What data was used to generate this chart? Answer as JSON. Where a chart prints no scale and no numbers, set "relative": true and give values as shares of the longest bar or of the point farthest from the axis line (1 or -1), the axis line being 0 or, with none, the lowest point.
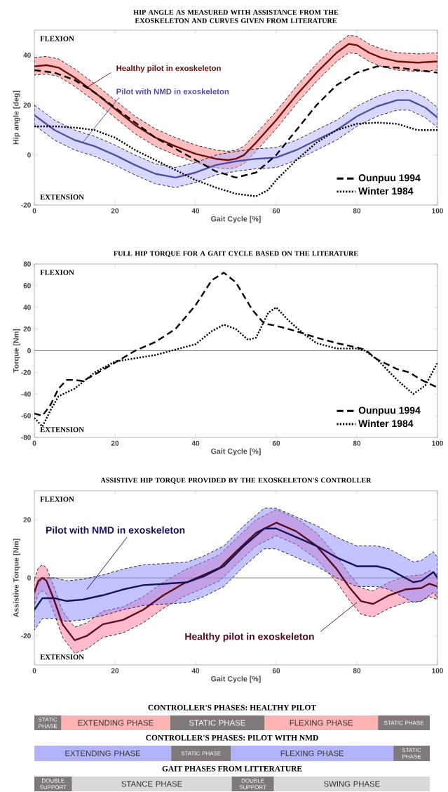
{
  "chart_data": [
    {
      "type": "line",
      "title": "HIP ANGLE AS MEASURED WITH ASSISTANCE FROM THE EXOSKELETON AND CURVES GIVEN FROM LITERATURE",
      "xlabel": "Gait Cycle [%]",
      "ylabel": "Hip angle [deg]",
      "annotations": [
        "FLEXION",
        "EXTENSION"
      ],
      "xlim": [
        0,
        100
      ],
      "ylim": [
        -20,
        50
      ],
      "xticks": [
        0,
        20,
        40,
        60,
        80,
        100
      ],
      "yticks": [
        -20,
        0,
        20,
        40
      ],
      "legend": "bottom right",
      "series": [
        {
          "name": "Healthy pilot in exoskeleton",
          "color": "#6b0f0f",
          "x": [
            0,
            3,
            6,
            10,
            15,
            20,
            25,
            30,
            35,
            40,
            45,
            48,
            50,
            52,
            55,
            60,
            65,
            70,
            75,
            78,
            80,
            83,
            86,
            90,
            95,
            100
          ],
          "values": [
            35.5,
            36,
            35,
            31,
            25,
            18.5,
            12,
            7,
            3.5,
            0.5,
            -1.5,
            -2,
            -1.5,
            0,
            5,
            14,
            24,
            33,
            41,
            44.5,
            44,
            41,
            39,
            37.5,
            37,
            37.5
          ],
          "upper": [
            39,
            39.5,
            38.5,
            34.5,
            28.5,
            22,
            15.5,
            10.5,
            7,
            4,
            2,
            1.5,
            2,
            3.5,
            8.5,
            17.5,
            27.5,
            36.5,
            44.5,
            48,
            47.5,
            44.5,
            42.5,
            41,
            40.5,
            41
          ],
          "lower": [
            32,
            32.5,
            31.5,
            27.5,
            21.5,
            15,
            8.5,
            3.5,
            0,
            -3,
            -5,
            -5.5,
            -5,
            -3.5,
            1.5,
            10.5,
            20.5,
            29.5,
            37.5,
            41,
            40.5,
            37.5,
            35.5,
            34,
            33.5,
            34
          ]
        },
        {
          "name": "Pilot with NMD in exoskeleton",
          "color": "#5050a0",
          "x": [
            0,
            5,
            10,
            15,
            20,
            25,
            30,
            35,
            40,
            45,
            50,
            55,
            60,
            65,
            70,
            75,
            80,
            85,
            90,
            93,
            97,
            100
          ],
          "values": [
            16,
            10,
            6,
            3.5,
            0,
            -4,
            -7.5,
            -9,
            -7,
            -4,
            -2.5,
            -1.5,
            -1,
            2,
            6,
            10,
            15.5,
            19.5,
            22,
            22,
            19,
            15
          ],
          "upper": [
            20,
            14,
            10,
            7.5,
            4,
            0,
            -3.5,
            -5,
            -3,
            0,
            1.5,
            2.5,
            3,
            6,
            10,
            14,
            19.5,
            23.5,
            26,
            26,
            23,
            19
          ],
          "lower": [
            12,
            6,
            2,
            -0.5,
            -4,
            -8,
            -11.5,
            -13,
            -11,
            -8,
            -6.5,
            -5.5,
            -5,
            -2,
            2,
            6,
            11.5,
            15.5,
            18,
            18,
            15,
            11
          ]
        },
        {
          "name": "Ounpuu 1994",
          "color": "#000000",
          "line_style": "dashed",
          "x": [
            0,
            5,
            10,
            15,
            20,
            25,
            30,
            35,
            40,
            45,
            50,
            55,
            60,
            65,
            70,
            75,
            80,
            85,
            90,
            95,
            100
          ],
          "values": [
            34,
            33,
            30,
            25,
            19,
            13,
            7,
            2.5,
            -2,
            -6.5,
            -9,
            -7,
            0,
            10,
            20,
            28,
            33,
            35.5,
            35,
            34,
            33
          ]
        },
        {
          "name": "Winter 1984",
          "color": "#000000",
          "line_style": "dotted",
          "x": [
            0,
            5,
            10,
            15,
            20,
            25,
            30,
            35,
            40,
            45,
            50,
            55,
            58,
            60,
            65,
            70,
            75,
            80,
            85,
            90,
            95,
            100
          ],
          "values": [
            11.5,
            11.5,
            11,
            10,
            7,
            2,
            -2,
            -6,
            -10,
            -13,
            -15.5,
            -16.5,
            -14,
            -10,
            -2,
            5,
            10,
            12.5,
            13,
            12.5,
            10,
            10
          ]
        }
      ]
    },
    {
      "type": "line",
      "title": "FULL HIP TORQUE FOR A GAIT CYCLE BASED ON THE LITERATURE",
      "xlabel": "Gait Cycle [%]",
      "ylabel": "Torque [Nm]",
      "annotations": [
        "FLEXION",
        "EXTENSION"
      ],
      "xlim": [
        0,
        100
      ],
      "ylim": [
        -80,
        80
      ],
      "xticks": [
        0,
        20,
        40,
        60,
        80,
        100
      ],
      "yticks": [
        -80,
        -60,
        -40,
        -20,
        0,
        20,
        40,
        60,
        80
      ],
      "legend": "bottom right",
      "ref_lines": [
        {
          "axis": "y",
          "value": 0,
          "color": "#808080"
        }
      ],
      "series": [
        {
          "name": "Ounpuu 1994",
          "color": "#000000",
          "line_style": "dashed",
          "x": [
            0,
            2,
            4,
            6,
            8,
            10,
            12,
            15,
            20,
            25,
            30,
            35,
            40,
            44,
            47,
            50,
            54,
            57,
            60,
            65,
            70,
            75,
            80,
            82,
            85,
            90,
            93,
            96,
            100
          ],
          "values": [
            -58,
            -60,
            -50,
            -35,
            -27,
            -27,
            -28,
            -22,
            -11,
            0,
            8,
            20,
            42,
            65,
            72,
            63,
            38,
            25,
            23,
            18,
            12,
            7,
            3,
            1,
            -8,
            -17,
            -20,
            -27,
            -34
          ]
        },
        {
          "name": "Winter 1984",
          "color": "#000000",
          "line_style": "dotted",
          "x": [
            0,
            2,
            4,
            6,
            10,
            15,
            20,
            25,
            30,
            35,
            40,
            44,
            47,
            50,
            53,
            55,
            58,
            60,
            63,
            67,
            70,
            75,
            80,
            82,
            85,
            90,
            94,
            97,
            100
          ],
          "values": [
            -62,
            -70,
            -55,
            -42,
            -35,
            -20,
            -10,
            -7,
            -4,
            1,
            6,
            18,
            24,
            20,
            10,
            12,
            35,
            40,
            28,
            15,
            7,
            2,
            2,
            0,
            -8,
            -27,
            -40,
            -32,
            -11
          ]
        }
      ]
    },
    {
      "type": "line",
      "title": "ASSISTIVE HIP TORQUE PROVIDED BY THE EXOSKELETON'S CONTROLLER",
      "xlabel": "Gait Cycle [%]",
      "ylabel": "Assistive Torque [Nm]",
      "annotations": [
        "FLEXION",
        "EXTENSION"
      ],
      "xlim": [
        0,
        100
      ],
      "ylim": [
        -30,
        30
      ],
      "xticks": [
        0,
        20,
        40,
        60,
        80,
        100
      ],
      "yticks": [
        -20,
        0,
        20
      ],
      "ref_lines": [
        {
          "axis": "y",
          "value": 0,
          "color": "#808080"
        }
      ],
      "series": [
        {
          "name": "Healthy pilot in exoskeleton",
          "color": "#5a0a1e",
          "x": [
            0,
            1,
            2,
            3,
            5,
            7,
            10,
            13,
            17,
            22,
            27,
            32,
            37,
            42,
            46,
            50,
            55,
            60,
            65,
            70,
            75,
            78,
            81,
            84,
            88,
            92,
            96,
            98,
            100
          ],
          "values": [
            -5,
            -1,
            0,
            -1,
            -8,
            -16,
            -21.5,
            -20,
            -16,
            -14.5,
            -11,
            -6,
            -2,
            1,
            3.5,
            9,
            15.5,
            19,
            16,
            11,
            3,
            -3,
            -8,
            -9,
            -6,
            -4,
            -3.5,
            -2,
            -3
          ],
          "upper": [
            -0.5,
            3.5,
            4.5,
            3.5,
            -3.5,
            -11.5,
            -17,
            -15.5,
            -11.5,
            -10,
            -6.5,
            -1.5,
            2.5,
            5.5,
            8,
            13.5,
            20,
            23.5,
            20.5,
            15.5,
            7.5,
            1.5,
            -3.5,
            -4.5,
            -1.5,
            0.5,
            1,
            2.5,
            1.5
          ],
          "lower": [
            -9.5,
            -5.5,
            -4.5,
            -5.5,
            -12.5,
            -20.5,
            -26,
            -24.5,
            -20.5,
            -19,
            -15.5,
            -10.5,
            -6.5,
            -3.5,
            -1,
            4.5,
            11,
            14.5,
            11.5,
            6.5,
            -1.5,
            -7.5,
            -12.5,
            -13.5,
            -10.5,
            -8.5,
            -8,
            -6.5,
            -7.5
          ]
        },
        {
          "name": "Pilot with NMD in exoskeleton",
          "color": "#14145a",
          "x": [
            0,
            2,
            5,
            8,
            12,
            17,
            22,
            27,
            33,
            38,
            42,
            47,
            52,
            57,
            60,
            65,
            70,
            75,
            80,
            85,
            88,
            92,
            94,
            96,
            99,
            100
          ],
          "values": [
            -11,
            -7,
            -7,
            -8,
            -7.5,
            -6,
            -4,
            -2.5,
            -2,
            -1.5,
            0.5,
            4,
            11,
            17,
            17,
            14,
            11,
            7,
            4,
            4,
            3,
            0,
            -1.5,
            -1,
            2,
            0
          ],
          "upper": [
            -4,
            0,
            0,
            -1,
            -0.5,
            1,
            3,
            4.5,
            5,
            5.5,
            7.5,
            11,
            18,
            24,
            24,
            21,
            18,
            14,
            11,
            11,
            10,
            7,
            5.5,
            6,
            9,
            7
          ],
          "lower": [
            -18,
            -14,
            -14,
            -15,
            -14.5,
            -13,
            -11,
            -9.5,
            -9,
            -8.5,
            -6.5,
            -3,
            4,
            10,
            10,
            7,
            4,
            0,
            -3,
            -3,
            -4,
            -7,
            -8.5,
            -8,
            -5,
            -7
          ]
        }
      ]
    },
    {
      "type": "bar",
      "orientation": "horizontal",
      "stacked": true,
      "relative": true,
      "title": "CONTROLLER'S PHASES: HEALTHY PILOT",
      "categories": [
        null
      ],
      "series": [
        {
          "name": "STATIC PHASE",
          "color": "#7f7979",
          "values": [
            0.068
          ]
        },
        {
          "name": "EXTENDING PHASE",
          "color": "#ffb3b3",
          "values": [
            0.275
          ]
        },
        {
          "name": "STATIC PHASE",
          "color": "#7f7979",
          "values": [
            0.239
          ]
        },
        {
          "name": "FLEXING PHASE",
          "color": "#ffb3b3",
          "values": [
            0.287
          ]
        },
        {
          "name": "STATIC PHASE",
          "color": "#7f7979",
          "values": [
            0.131
          ]
        }
      ]
    },
    {
      "type": "bar",
      "orientation": "horizontal",
      "stacked": true,
      "relative": true,
      "title": "CONTROLLER'S PHASES: PILOT WITH NMD",
      "categories": [
        null
      ],
      "series": [
        {
          "name": "EXTENDING PHASE",
          "color": "#b3b3fa",
          "values": [
            0.346
          ]
        },
        {
          "name": "STATIC PHASE",
          "color": "#7f7979",
          "values": [
            0.151
          ]
        },
        {
          "name": "FLEXING PHASE",
          "color": "#b3b3fa",
          "values": [
            0.411
          ]
        },
        {
          "name": "STATIC PHASE",
          "color": "#7f7979",
          "values": [
            0.092
          ]
        }
      ]
    },
    {
      "type": "bar",
      "orientation": "horizontal",
      "stacked": true,
      "relative": true,
      "title": "GAIT PHASES FROM LITTERATURE",
      "categories": [
        null
      ],
      "series": [
        {
          "name": "DOUBLE SUPPORT",
          "color": "#7f7979",
          "values": [
            0.095
          ]
        },
        {
          "name": "STANCE PHASE",
          "color": "#d9d9d9",
          "values": [
            0.404
          ]
        },
        {
          "name": "DOUBLE SUPPORT",
          "color": "#7f7979",
          "values": [
            0.107
          ]
        },
        {
          "name": "SWING PHASE",
          "color": "#d9d9d9",
          "values": [
            0.394
          ]
        }
      ]
    }
  ]
}
